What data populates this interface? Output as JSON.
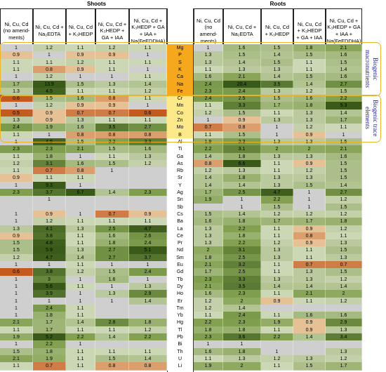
{
  "headers": {
    "shoots": "Shoots",
    "roots": "Roots",
    "treatments": [
      "Ni, Cu, Cd (no amend-ments)",
      "Ni, Cu, Cd + Na₂EDTA",
      "Ni, Cu, Cd + K₃HEDP",
      "Ni, Cu, Cd + K₃HEDP + GA + IAA",
      "Ni, Cu, Cd + K₃HEDP + GA + IAA + Na(FeEDDHA)"
    ]
  },
  "groups": [
    {
      "label": "Biogenic macronutrients"
    },
    {
      "label": "Biogenic trace elements"
    }
  ],
  "colors": {
    "element_gold": "#f5a81c",
    "element_trace": "#fde98a",
    "group_border": "#e8b428",
    "group_label": "#1a1a8a"
  },
  "rows": [
    {
      "el": "Mg",
      "s": [
        "1",
        "1.2",
        "1.1",
        "1.2",
        "1.1"
      ],
      "r": [
        "1",
        "1.6",
        "1.5",
        "1.8",
        "2.1"
      ]
    },
    {
      "el": "P",
      "s": [
        "0.9",
        "1",
        "0.9",
        "0.9",
        "1"
      ],
      "r": [
        "1.3",
        "1.5",
        "1.4",
        "1.5",
        "1.6"
      ]
    },
    {
      "el": "S",
      "s": [
        "1.1",
        "1.1",
        "1.2",
        "1.1",
        "1.1"
      ],
      "r": [
        "1.3",
        "1.4",
        "1.5",
        "1.1",
        "1.5"
      ]
    },
    {
      "el": "K",
      "s": [
        "1.1",
        "0.8",
        "0.9",
        "1.1",
        "1"
      ],
      "r": [
        "1.1",
        "1.3",
        "1.3",
        "1.1",
        "1.4"
      ]
    },
    {
      "el": "Ca",
      "s": [
        "1",
        "1.2",
        "1",
        "1",
        "1.1"
      ],
      "r": [
        "1.6",
        "2.1",
        "1.4",
        "1.5",
        "1.6"
      ]
    },
    {
      "el": "Na",
      "s": [
        "1.7",
        "13.9",
        "1.5",
        "1.3",
        "1.4"
      ],
      "r": [
        "2.4",
        "20.4",
        "3.5",
        "1.4",
        "2.7"
      ]
    },
    {
      "el": "Fe",
      "s": [
        "1.3",
        "4.5",
        "1.1",
        "1.1",
        "1.2"
      ],
      "r": [
        "2.3",
        "2.4",
        "1.3",
        "1.2",
        "1.5"
      ]
    },
    {
      "el": "Cr",
      "s": [
        "0.6",
        "1.5",
        "1.6",
        "0.8",
        "1.1"
      ],
      "r": [
        "2.4",
        "2.5",
        "1.5",
        "1.6",
        "2.2"
      ]
    },
    {
      "el": "Mn",
      "s": [
        "1",
        "1.2",
        "0.9",
        "0.9",
        "1"
      ],
      "r": [
        "1.1",
        "3.3",
        "1.7",
        "1.8",
        "5.3"
      ]
    },
    {
      "el": "Co",
      "s": [
        "0.5",
        "0.9",
        "0.7",
        "0.7",
        "0.6"
      ],
      "r": [
        "1.2",
        "1.5",
        "1.1",
        "1.3",
        "1.4"
      ]
    },
    {
      "el": "Zn",
      "s": [
        "1.3",
        "0.9",
        "1.3",
        "1.1",
        "1.1"
      ],
      "r": [
        "1",
        "0.9",
        "1.3",
        "1.3",
        "1.7"
      ]
    },
    {
      "el": "Mo",
      "s": [
        "2.4",
        "1.9",
        "1.6",
        "3.5",
        "2.7"
      ],
      "r": [
        "0.7",
        "0.8",
        "1",
        "1.2",
        "1.1"
      ]
    },
    {
      "el": "B",
      "s": [
        "1.1",
        "1",
        "0.8",
        "0.8",
        "0.8"
      ],
      "r": [
        "1.1",
        "1.5",
        "1",
        "0.9",
        "1"
      ]
    },
    {
      "el": "Al",
      "s": [
        "1",
        "4.5",
        "1.5",
        "2.2",
        "3.3"
      ],
      "r": [
        "1.9",
        "2.3",
        "1.3",
        "1.3",
        "1.5"
      ]
    },
    {
      "el": "Ti",
      "s": [
        "2.3",
        "2.3",
        "2.1",
        "1.5",
        "1.6"
      ],
      "r": [
        "2.2",
        "3.1",
        "2",
        "2",
        "2.1"
      ]
    },
    {
      "el": "Ga",
      "s": [
        "1.1",
        "1.8",
        "1",
        "1.1",
        "1.3"
      ],
      "r": [
        "1.4",
        "1.8",
        "1.3",
        "1.3",
        "1.6"
      ]
    },
    {
      "el": "As",
      "s": [
        "1.2",
        "3.1",
        "1.6",
        "1.5",
        "1.2"
      ],
      "r": [
        "0.8",
        "6.6",
        "1.1",
        "0.9",
        "1.5"
      ]
    },
    {
      "el": "Rb",
      "s": [
        "1.1",
        "0.7",
        "0.8",
        "1",
        ""
      ],
      "r": [
        "1.2",
        "1.3",
        "1.1",
        "1.2",
        "1.5"
      ]
    },
    {
      "el": "Sr",
      "s": [
        "0.9",
        "1.1",
        "1.1",
        "",
        ""
      ],
      "r": [
        "1.4",
        "1.8",
        "1.3",
        "1.3",
        "1.5"
      ]
    },
    {
      "el": "Y",
      "s": [
        "1",
        "9.3",
        "1",
        "",
        ""
      ],
      "r": [
        "1.4",
        "1.4",
        "1.3",
        "1.5",
        "1.4"
      ]
    },
    {
      "el": "Ag",
      "s": [
        "2.3",
        "3.7",
        "6.7",
        "1.4",
        "2.3"
      ],
      "r": [
        "1.7",
        "2.5",
        "4.7",
        "1",
        "2.7"
      ]
    },
    {
      "el": "Sn",
      "s": [
        "",
        "1",
        "",
        "",
        ""
      ],
      "r": [
        "1.9",
        "1",
        "2.2",
        "1",
        "1.2"
      ]
    },
    {
      "el": "Sb",
      "s": [
        "",
        "",
        "",
        "",
        ""
      ],
      "r": [
        "",
        "1",
        "1.5",
        "1",
        "1.5"
      ]
    },
    {
      "el": "Cs",
      "s": [
        "1",
        "0.9",
        "1",
        "0.7",
        "0.9"
      ],
      "r": [
        "1.5",
        "1.4",
        "1.2",
        "1.2",
        "1.2"
      ]
    },
    {
      "el": "Ba",
      "s": [
        "1",
        "1.2",
        "1.1",
        "1.1",
        "1.1"
      ],
      "r": [
        "1.6",
        "1.8",
        "1.7",
        "1.7",
        "1.8"
      ]
    },
    {
      "el": "La",
      "s": [
        "1.3",
        "4.1",
        "1.3",
        "2.5",
        "4.7"
      ],
      "r": [
        "1.3",
        "2.2",
        "1.1",
        "0.9",
        "1.2"
      ]
    },
    {
      "el": "Ce",
      "s": [
        "0.9",
        "3.8",
        "1.1",
        "1.6",
        "2.6"
      ],
      "r": [
        "1.3",
        "1.8",
        "1.1",
        "0.8",
        "1.1"
      ]
    },
    {
      "el": "Pr",
      "s": [
        "1.5",
        "4.8",
        "1.1",
        "1.8",
        "2.4"
      ],
      "r": [
        "1.3",
        "2.2",
        "1.2",
        "0.9",
        "1.3"
      ]
    },
    {
      "el": "Nd",
      "s": [
        "1.5",
        "5.9",
        "1.3",
        "2.7",
        "5.1"
      ],
      "r": [
        "2",
        "3.1",
        "1.3",
        "1.1",
        "1.5"
      ]
    },
    {
      "el": "Sm",
      "s": [
        "1.2",
        "4.7",
        "1.4",
        "2.7",
        "3.7"
      ],
      "r": [
        "1.8",
        "2.5",
        "1.3",
        "1.1",
        "1.3"
      ]
    },
    {
      "el": "Eu",
      "s": [
        "1",
        "1",
        "1.1",
        "1",
        "1"
      ],
      "r": [
        "2.1",
        "3.2",
        "1.1",
        "0.7",
        "0.7"
      ]
    },
    {
      "el": "Gd",
      "s": [
        "0.6",
        "3.8",
        "1.2",
        "1.5",
        "2.4"
      ],
      "r": [
        "1.7",
        "2.5",
        "1.1",
        "1.3",
        "1.5"
      ]
    },
    {
      "el": "Tb",
      "s": [
        "1",
        "3",
        "1",
        "1.6",
        "1"
      ],
      "r": [
        "2.3",
        "3.3",
        "1.3",
        "1.3",
        "1.2"
      ]
    },
    {
      "el": "Dy",
      "s": [
        "1",
        "5.6",
        "1.1",
        "1",
        "1.3"
      ],
      "r": [
        "2.1",
        "3.5",
        "1.4",
        "1.4",
        "1.4"
      ]
    },
    {
      "el": "Ho",
      "s": [
        "1",
        "3.9",
        "1",
        "1.3",
        "2.9"
      ],
      "r": [
        "1.6",
        "2.3",
        "1.1",
        "2.1",
        "2"
      ]
    },
    {
      "el": "Er",
      "s": [
        "1",
        "1",
        "1",
        "1",
        "1.4"
      ],
      "r": [
        "1.2",
        "2",
        "0.9",
        "1.1",
        "1.2"
      ]
    },
    {
      "el": "Tm",
      "s": [
        "1",
        "2.4",
        "1.1",
        "",
        ""
      ],
      "r": [
        "1.2",
        "1.4",
        "",
        "",
        ""
      ]
    },
    {
      "el": "Yb",
      "s": [
        "1",
        "1.8",
        "1.1",
        "",
        ""
      ],
      "r": [
        "1.1",
        "2.4",
        "1.1",
        "1.6",
        "1.6"
      ]
    },
    {
      "el": "Hg",
      "s": [
        "2.1",
        "1.7",
        "1.4",
        "2.8",
        "1.8"
      ],
      "r": [
        "2.2",
        "2.3",
        "1.9",
        "0.9",
        "2.9"
      ]
    },
    {
      "el": "Tl",
      "s": [
        "1.1",
        "1.7",
        "1.1",
        "1.1",
        "1.2"
      ],
      "r": [
        "1.8",
        "1.8",
        "1.1",
        "0.9",
        "1.3"
      ]
    },
    {
      "el": "Pb",
      "s": [
        "1.9",
        "5.2",
        "2.2",
        "1.4",
        "2.2"
      ],
      "r": [
        "2.3",
        "3.6",
        "2.2",
        "1.4",
        "3.4"
      ]
    },
    {
      "el": "Bi",
      "s": [
        "1",
        "2.2",
        "1",
        "",
        ""
      ],
      "r": [
        "1",
        "1",
        "",
        "",
        ""
      ]
    },
    {
      "el": "Th",
      "s": [
        "1.5",
        "1.8",
        "1.1",
        "1.1",
        "1.1"
      ],
      "r": [
        "1.6",
        "1.8",
        "1",
        "",
        "1.3"
      ]
    },
    {
      "el": "U",
      "s": [
        "2.1",
        "1.9",
        "1.1",
        "1.5",
        "1.4"
      ],
      "r": [
        "1.1",
        "1.3",
        "1.2",
        "1.3",
        "1.2"
      ]
    },
    {
      "el": "Li",
      "s": [
        "1.1",
        "0.7",
        "1.1",
        "0.8",
        "0.8"
      ],
      "r": [
        "1.9",
        "2",
        "1.1",
        "1.5",
        "1.7"
      ]
    }
  ]
}
